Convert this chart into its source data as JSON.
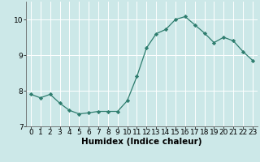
{
  "x": [
    0,
    1,
    2,
    3,
    4,
    5,
    6,
    7,
    8,
    9,
    10,
    11,
    12,
    13,
    14,
    15,
    16,
    17,
    18,
    19,
    20,
    21,
    22,
    23
  ],
  "y": [
    7.9,
    7.8,
    7.9,
    7.65,
    7.45,
    7.35,
    7.38,
    7.42,
    7.42,
    7.42,
    7.72,
    8.4,
    9.2,
    9.6,
    9.72,
    10.0,
    10.08,
    9.85,
    9.62,
    9.35,
    9.5,
    9.4,
    9.1,
    8.85
  ],
  "line_color": "#2e7d6e",
  "marker_color": "#2e7d6e",
  "bg_color": "#cce8e8",
  "grid_color": "#ffffff",
  "xlabel": "Humidex (Indice chaleur)",
  "ylim": [
    7.0,
    10.5
  ],
  "xlim": [
    -0.5,
    23.5
  ],
  "yticks": [
    7,
    8,
    9,
    10
  ],
  "xticks": [
    0,
    1,
    2,
    3,
    4,
    5,
    6,
    7,
    8,
    9,
    10,
    11,
    12,
    13,
    14,
    15,
    16,
    17,
    18,
    19,
    20,
    21,
    22,
    23
  ],
  "tick_labelsize": 6.5,
  "xlabel_fontsize": 7.5,
  "figsize": [
    3.2,
    2.0
  ],
  "dpi": 100
}
